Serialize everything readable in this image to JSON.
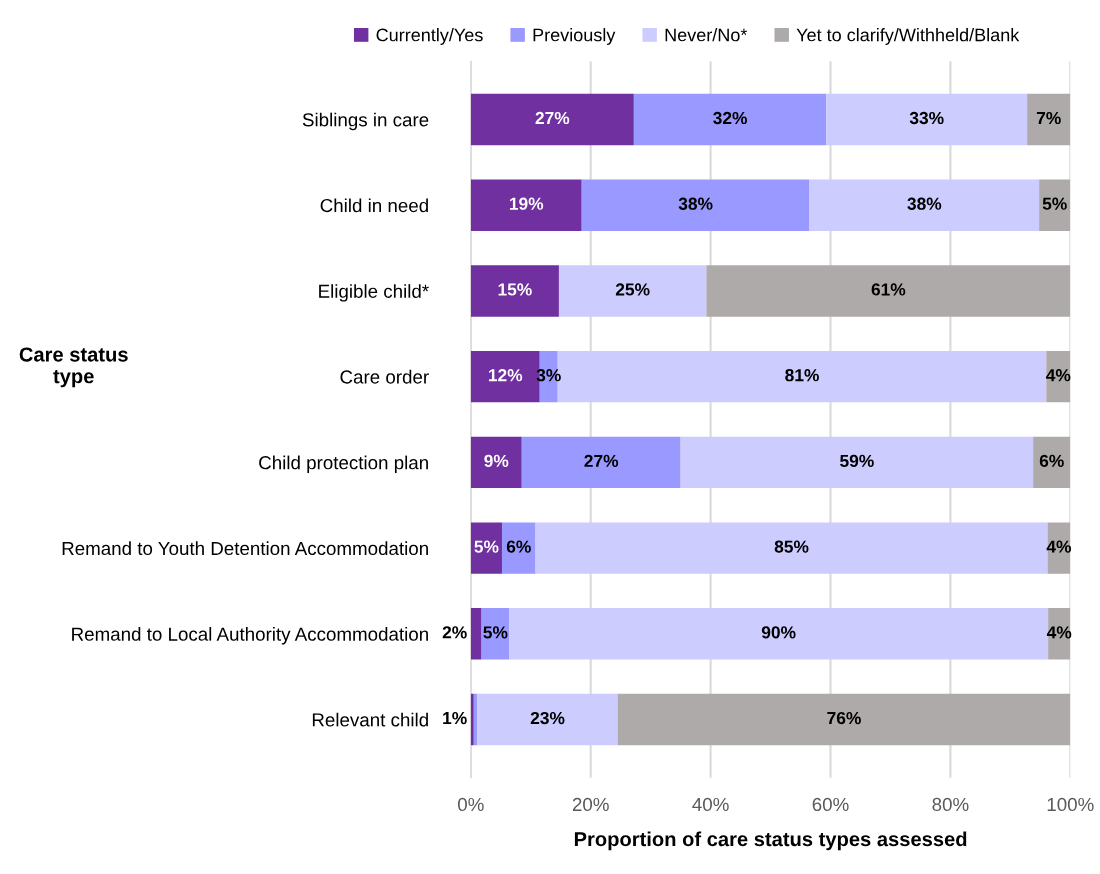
{
  "chart_data": {
    "type": "bar",
    "orientation": "horizontal",
    "stacked": true,
    "xlabel": "Proportion of care status types assessed",
    "ylabel": "Care status\ntype",
    "categories": [
      "Siblings in care",
      "Child in need",
      "Eligible child*",
      "Care order",
      "Child protection plan",
      "Remand to Youth Detention Accommodation",
      "Remand to Local Authority Accommodation",
      "Relevant child"
    ],
    "series": [
      {
        "name": "Currently/Yes",
        "color": "#7030a0",
        "values": [
          27.2,
          18.5,
          14.7,
          11.5,
          8.5,
          5.2,
          1.8,
          0.5
        ],
        "value_labels": [
          "27%",
          "19%",
          "15%",
          "12%",
          "9%",
          "5%",
          "2%",
          null
        ]
      },
      {
        "name": "Previously",
        "color": "#9999ff",
        "values": [
          32.1,
          38,
          0,
          3,
          26.5,
          5.6,
          4.6,
          0.6
        ],
        "value_labels": [
          "32%",
          "38%",
          null,
          "3%",
          "27%",
          "6%",
          "5%",
          "1%"
        ]
      },
      {
        "name": "Never/No*",
        "color": "#ccccff",
        "values": [
          33.5,
          38.3,
          24.6,
          81.5,
          58.8,
          85.4,
          89.9,
          23.4
        ],
        "value_labels": [
          "33%",
          "38%",
          "25%",
          "81%",
          "59%",
          "85%",
          "90%",
          "23%"
        ]
      },
      {
        "name": "Yet to clarify/Withheld/Blank",
        "color": "#aeaaaa",
        "values": [
          7.2,
          5.2,
          60.7,
          4,
          6.2,
          3.8,
          3.7,
          75.5
        ],
        "value_labels": [
          "7%",
          "5%",
          "61%",
          "4%",
          "6%",
          "4%",
          "4%",
          "76%"
        ]
      }
    ],
    "xlim": [
      0,
      100
    ],
    "xticks": [
      {
        "value": 0,
        "label": "0%"
      },
      {
        "value": 20,
        "label": "20%"
      },
      {
        "value": 40,
        "label": "40%"
      },
      {
        "value": 60,
        "label": "60%"
      },
      {
        "value": 80,
        "label": "80%"
      },
      {
        "value": 100,
        "label": "100%"
      }
    ],
    "grid": "x",
    "legend": "top"
  }
}
